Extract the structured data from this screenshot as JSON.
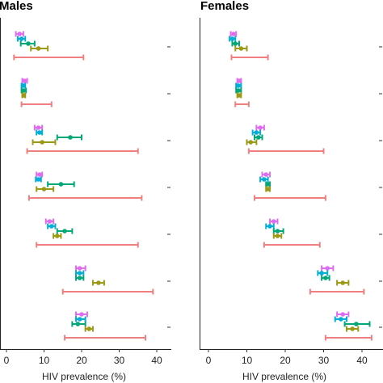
{
  "chart_data": {
    "type": "errorbar",
    "xlabel": "HIV prevalence (%)",
    "xlim": [
      0,
      45
    ],
    "xticks": [
      0,
      10,
      20,
      30,
      40
    ],
    "colors": [
      "#e06cf0",
      "#00aed6",
      "#00a878",
      "#9c9a14",
      "#f08080"
    ],
    "panels": [
      {
        "title": "Males",
        "groups": [
          [
            {
              "c": 0,
              "m": 3.5,
              "lo": 2.5,
              "hi": 4.5
            },
            {
              "c": 1,
              "m": 4,
              "lo": 3.0,
              "hi": 5.0
            },
            {
              "c": 2,
              "m": 5.8,
              "lo": 3.8,
              "hi": 7.5
            },
            {
              "c": 3,
              "m": 8.5,
              "lo": 6.5,
              "hi": 11.0
            },
            {
              "c": 4,
              "m": null,
              "lo": 2.0,
              "hi": 20.5
            }
          ],
          [
            {
              "c": 0,
              "m": 4.8,
              "lo": 4.2,
              "hi": 5.5
            },
            {
              "c": 1,
              "m": 4.5,
              "lo": 4.0,
              "hi": 5.0
            },
            {
              "c": 2,
              "m": 4.5,
              "lo": 4.0,
              "hi": 5.2
            },
            {
              "c": 3,
              "m": 4.6,
              "lo": 4.2,
              "hi": 5.0
            },
            {
              "c": 4,
              "m": null,
              "lo": 4.0,
              "hi": 12.0
            }
          ],
          [
            {
              "c": 0,
              "m": 8.5,
              "lo": 7.5,
              "hi": 9.5
            },
            {
              "c": 1,
              "m": 8.8,
              "lo": 8.0,
              "hi": 9.5
            },
            {
              "c": 2,
              "m": 17.0,
              "lo": 13.5,
              "hi": 20.0
            },
            {
              "c": 3,
              "m": 9.5,
              "lo": 7.0,
              "hi": 13.0
            },
            {
              "c": 4,
              "m": null,
              "lo": 5.5,
              "hi": 35.0
            }
          ],
          [
            {
              "c": 0,
              "m": 8.8,
              "lo": 8.0,
              "hi": 9.5
            },
            {
              "c": 1,
              "m": 8.5,
              "lo": 7.8,
              "hi": 9.2
            },
            {
              "c": 2,
              "m": 14.5,
              "lo": 11.0,
              "hi": 18.0
            },
            {
              "c": 3,
              "m": 10.0,
              "lo": 8.0,
              "hi": 12.5
            },
            {
              "c": 4,
              "m": null,
              "lo": 6.0,
              "hi": 36.0
            }
          ],
          [
            {
              "c": 0,
              "m": 11.5,
              "lo": 10.5,
              "hi": 12.5
            },
            {
              "c": 1,
              "m": 12.0,
              "lo": 11.0,
              "hi": 13.0
            },
            {
              "c": 2,
              "m": 15.5,
              "lo": 13.5,
              "hi": 17.5
            },
            {
              "c": 3,
              "m": 13.5,
              "lo": 12.5,
              "hi": 14.5
            },
            {
              "c": 4,
              "m": null,
              "lo": 8.0,
              "hi": 35.0
            }
          ],
          [
            {
              "c": 0,
              "m": 19.5,
              "lo": 18.5,
              "hi": 21.0
            },
            {
              "c": 1,
              "m": 19.5,
              "lo": 18.5,
              "hi": 20.5
            },
            {
              "c": 2,
              "m": 19.5,
              "lo": 18.5,
              "hi": 20.5
            },
            {
              "c": 3,
              "m": 24.5,
              "lo": 23.0,
              "hi": 26.0
            },
            {
              "c": 4,
              "m": null,
              "lo": 15.0,
              "hi": 39.0
            }
          ],
          [
            {
              "c": 0,
              "m": 20.0,
              "lo": 18.5,
              "hi": 21.5
            },
            {
              "c": 1,
              "m": 19.5,
              "lo": 18.5,
              "hi": 21.0
            },
            {
              "c": 2,
              "m": 19.0,
              "lo": 17.5,
              "hi": 21.0
            },
            {
              "c": 3,
              "m": 22.0,
              "lo": 21.0,
              "hi": 23.0
            },
            {
              "c": 4,
              "m": null,
              "lo": 15.5,
              "hi": 37.0
            }
          ]
        ]
      },
      {
        "title": "Females",
        "groups": [
          [
            {
              "c": 0,
              "m": 6.5,
              "lo": 5.8,
              "hi": 7.2
            },
            {
              "c": 1,
              "m": 6.2,
              "lo": 5.5,
              "hi": 7.0
            },
            {
              "c": 2,
              "m": 7.0,
              "lo": 6.2,
              "hi": 8.0
            },
            {
              "c": 3,
              "m": 8.5,
              "lo": 7.0,
              "hi": 10.0
            },
            {
              "c": 4,
              "m": null,
              "lo": 6.0,
              "hi": 15.5
            }
          ],
          [
            {
              "c": 0,
              "m": 8.0,
              "lo": 7.5,
              "hi": 8.5
            },
            {
              "c": 1,
              "m": 7.8,
              "lo": 7.2,
              "hi": 8.5
            },
            {
              "c": 2,
              "m": 7.8,
              "lo": 7.2,
              "hi": 8.5
            },
            {
              "c": 3,
              "m": 8.0,
              "lo": 7.5,
              "hi": 8.5
            },
            {
              "c": 4,
              "m": null,
              "lo": 7.0,
              "hi": 10.5
            }
          ],
          [
            {
              "c": 0,
              "m": 13.5,
              "lo": 12.5,
              "hi": 14.5
            },
            {
              "c": 1,
              "m": 12.5,
              "lo": 11.5,
              "hi": 13.5
            },
            {
              "c": 2,
              "m": 13.0,
              "lo": 12.0,
              "hi": 14.0
            },
            {
              "c": 3,
              "m": 11.0,
              "lo": 10.0,
              "hi": 12.5
            },
            {
              "c": 4,
              "m": null,
              "lo": 10.5,
              "hi": 30.0
            }
          ],
          [
            {
              "c": 0,
              "m": 15.0,
              "lo": 14.0,
              "hi": 16.0
            },
            {
              "c": 1,
              "m": 14.5,
              "lo": 13.5,
              "hi": 15.5
            },
            {
              "c": 2,
              "m": 15.5,
              "lo": 15.0,
              "hi": 16.0
            },
            {
              "c": 3,
              "m": 15.5,
              "lo": 15.0,
              "hi": 16.0
            },
            {
              "c": 4,
              "m": null,
              "lo": 12.0,
              "hi": 30.5
            }
          ],
          [
            {
              "c": 0,
              "m": 17.0,
              "lo": 16.0,
              "hi": 18.0
            },
            {
              "c": 1,
              "m": 16.0,
              "lo": 15.0,
              "hi": 17.0
            },
            {
              "c": 2,
              "m": 18.0,
              "lo": 17.0,
              "hi": 19.5
            },
            {
              "c": 3,
              "m": 18.0,
              "lo": 17.0,
              "hi": 19.0
            },
            {
              "c": 4,
              "m": null,
              "lo": 14.5,
              "hi": 29.0
            }
          ],
          [
            {
              "c": 0,
              "m": 31.0,
              "lo": 29.5,
              "hi": 32.5
            },
            {
              "c": 1,
              "m": 29.5,
              "lo": 28.5,
              "hi": 31.0
            },
            {
              "c": 2,
              "m": 30.5,
              "lo": 29.5,
              "hi": 31.5
            },
            {
              "c": 3,
              "m": 35.0,
              "lo": 33.5,
              "hi": 36.5
            },
            {
              "c": 4,
              "m": null,
              "lo": 26.5,
              "hi": 40.5
            }
          ],
          [
            {
              "c": 0,
              "m": 35.0,
              "lo": 33.5,
              "hi": 36.5
            },
            {
              "c": 1,
              "m": 34.5,
              "lo": 33.0,
              "hi": 36.0
            },
            {
              "c": 2,
              "m": 38.5,
              "lo": 35.5,
              "hi": 42.0
            },
            {
              "c": 3,
              "m": 37.5,
              "lo": 36.0,
              "hi": 39.0
            },
            {
              "c": 4,
              "m": null,
              "lo": 30.5,
              "hi": 42.5
            }
          ]
        ]
      }
    ]
  }
}
